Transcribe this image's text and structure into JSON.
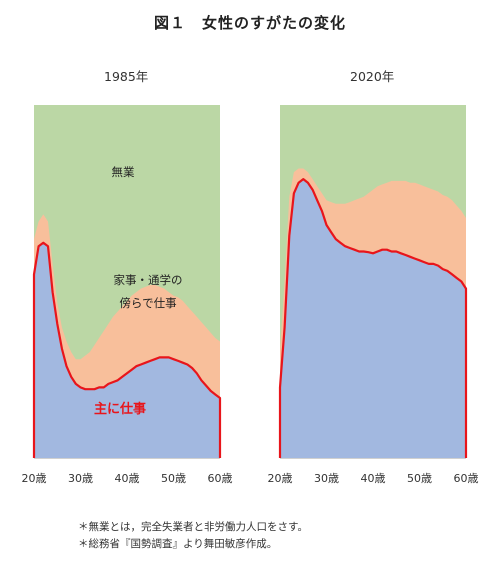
{
  "title": "図１　女性のすがたの変化",
  "footnotes": [
    "＊無業とは，完全失業者と非労働力人口をさす。",
    "＊総務省『国勢調査』より舞田敏彦作成。"
  ],
  "chart_data": [
    {
      "type": "area",
      "panel_label": "1985年",
      "x_ticks": [
        "20歳",
        "30歳",
        "40歳",
        "50歳",
        "60歳"
      ],
      "x": [
        20,
        21,
        22,
        23,
        24,
        25,
        26,
        27,
        28,
        29,
        30,
        31,
        32,
        33,
        34,
        35,
        36,
        37,
        38,
        39,
        40,
        41,
        42,
        43,
        44,
        45,
        46,
        47,
        48,
        49,
        50,
        51,
        52,
        53,
        54,
        55,
        56,
        57,
        58,
        59,
        60
      ],
      "ylim": [
        0,
        100
      ],
      "series": [
        {
          "name": "主に仕事",
          "values": [
            52,
            60,
            61,
            60,
            47,
            38,
            31,
            26,
            23,
            21,
            20,
            19.5,
            19.5,
            19.5,
            20,
            20,
            21,
            21.5,
            22,
            23,
            24,
            25,
            26,
            26.5,
            27,
            27.5,
            28,
            28.5,
            28.5,
            28.5,
            28,
            27.5,
            27,
            26.5,
            25.5,
            24,
            22,
            20.5,
            19,
            18,
            17
          ]
        },
        {
          "name": "家事・通学の傍らで仕事",
          "values": [
            62,
            67,
            69,
            67,
            55,
            44,
            37,
            33,
            30,
            28,
            28,
            29,
            30,
            32,
            34,
            36,
            38,
            40,
            41.5,
            43,
            44.5,
            46,
            47,
            48,
            48.5,
            49,
            49,
            48.5,
            48,
            47,
            46,
            45.5,
            44.5,
            43,
            41.5,
            40,
            38.5,
            37,
            35.5,
            34,
            33
          ]
        },
        {
          "name": "無業",
          "values": [
            100,
            100,
            100,
            100,
            100,
            100,
            100,
            100,
            100,
            100,
            100,
            100,
            100,
            100,
            100,
            100,
            100,
            100,
            100,
            100,
            100,
            100,
            100,
            100,
            100,
            100,
            100,
            100,
            100,
            100,
            100,
            100,
            100,
            100,
            100,
            100,
            100,
            100,
            100,
            100,
            100
          ]
        }
      ]
    },
    {
      "type": "area",
      "panel_label": "2020年",
      "x_ticks": [
        "20歳",
        "30歳",
        "40歳",
        "50歳",
        "60歳"
      ],
      "x": [
        20,
        21,
        22,
        23,
        24,
        25,
        26,
        27,
        28,
        29,
        30,
        31,
        32,
        33,
        34,
        35,
        36,
        37,
        38,
        39,
        40,
        41,
        42,
        43,
        44,
        45,
        46,
        47,
        48,
        49,
        50,
        51,
        52,
        53,
        54,
        55,
        56,
        57,
        58,
        59,
        60
      ],
      "ylim": [
        0,
        100
      ],
      "series": [
        {
          "name": "主に仕事",
          "values": [
            20,
            37,
            63,
            75,
            78,
            79,
            78,
            76,
            73,
            70,
            66,
            64,
            62,
            61,
            60,
            59.5,
            59,
            58.5,
            58.5,
            58.3,
            58,
            58.5,
            59,
            59,
            58.5,
            58.5,
            58,
            57.5,
            57,
            56.5,
            56,
            55.5,
            55,
            55,
            54.5,
            53.5,
            53,
            52,
            51,
            50,
            48
          ]
        },
        {
          "name": "家事・通学の傍らで仕事",
          "values": [
            30,
            50,
            74,
            81,
            82,
            82,
            81,
            79,
            77,
            75,
            73,
            72.5,
            72,
            72,
            72,
            72.5,
            73,
            73.5,
            74,
            75,
            76,
            77,
            77.5,
            78,
            78.5,
            78.5,
            78.5,
            78.5,
            78,
            78,
            77.5,
            77,
            76.5,
            76,
            75.5,
            74.5,
            74,
            73,
            71.5,
            70,
            68
          ]
        },
        {
          "name": "無業",
          "values": [
            100,
            100,
            100,
            100,
            100,
            100,
            100,
            100,
            100,
            100,
            100,
            100,
            100,
            100,
            100,
            100,
            100,
            100,
            100,
            100,
            100,
            100,
            100,
            100,
            100,
            100,
            100,
            100,
            100,
            100,
            100,
            100,
            100,
            100,
            100,
            100,
            100,
            100,
            100,
            100,
            100
          ]
        }
      ]
    }
  ],
  "region_labels": {
    "none": "無業",
    "side_work_line1": "家事・通学の",
    "side_work_line2": "傍らで仕事",
    "main_work": "主に仕事"
  },
  "colors": {
    "main_work": "#a2b8e0",
    "side_work": "#f8bf9b",
    "none": "#bbd7a5",
    "main_work_line": "#e8151b"
  }
}
